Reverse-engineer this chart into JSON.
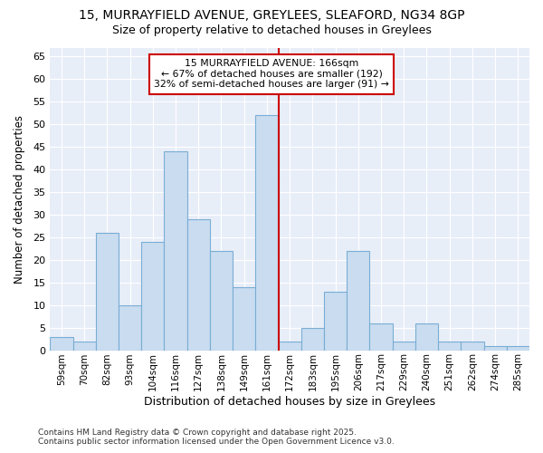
{
  "title_line1": "15, MURRAYFIELD AVENUE, GREYLEES, SLEAFORD, NG34 8GP",
  "title_line2": "Size of property relative to detached houses in Greylees",
  "xlabel": "Distribution of detached houses by size in Greylees",
  "ylabel": "Number of detached properties",
  "footer_line1": "Contains HM Land Registry data © Crown copyright and database right 2025.",
  "footer_line2": "Contains public sector information licensed under the Open Government Licence v3.0.",
  "annotation_line1": "15 MURRAYFIELD AVENUE: 166sqm",
  "annotation_line2": "← 67% of detached houses are smaller (192)",
  "annotation_line3": "32% of semi-detached houses are larger (91) →",
  "categories": [
    "59sqm",
    "70sqm",
    "82sqm",
    "93sqm",
    "104sqm",
    "116sqm",
    "127sqm",
    "138sqm",
    "149sqm",
    "161sqm",
    "172sqm",
    "183sqm",
    "195sqm",
    "206sqm",
    "217sqm",
    "229sqm",
    "240sqm",
    "251sqm",
    "262sqm",
    "274sqm",
    "285sqm"
  ],
  "values": [
    3,
    2,
    26,
    10,
    24,
    44,
    29,
    22,
    14,
    52,
    2,
    5,
    13,
    22,
    6,
    2,
    6,
    2,
    2,
    1,
    1
  ],
  "bar_color": "#c9dcf0",
  "bar_edge_color": "#7aadd4",
  "reference_line_index": 9,
  "reference_line_color": "#cc0000",
  "ylim": [
    0,
    67
  ],
  "yticks": [
    0,
    5,
    10,
    15,
    20,
    25,
    30,
    35,
    40,
    45,
    50,
    55,
    60,
    65
  ],
  "fig_bg_color": "#ffffff",
  "plot_bg_color": "#e8eef8",
  "grid_color": "#ffffff",
  "annotation_box_facecolor": "#ffffff",
  "annotation_box_edgecolor": "#cc0000"
}
